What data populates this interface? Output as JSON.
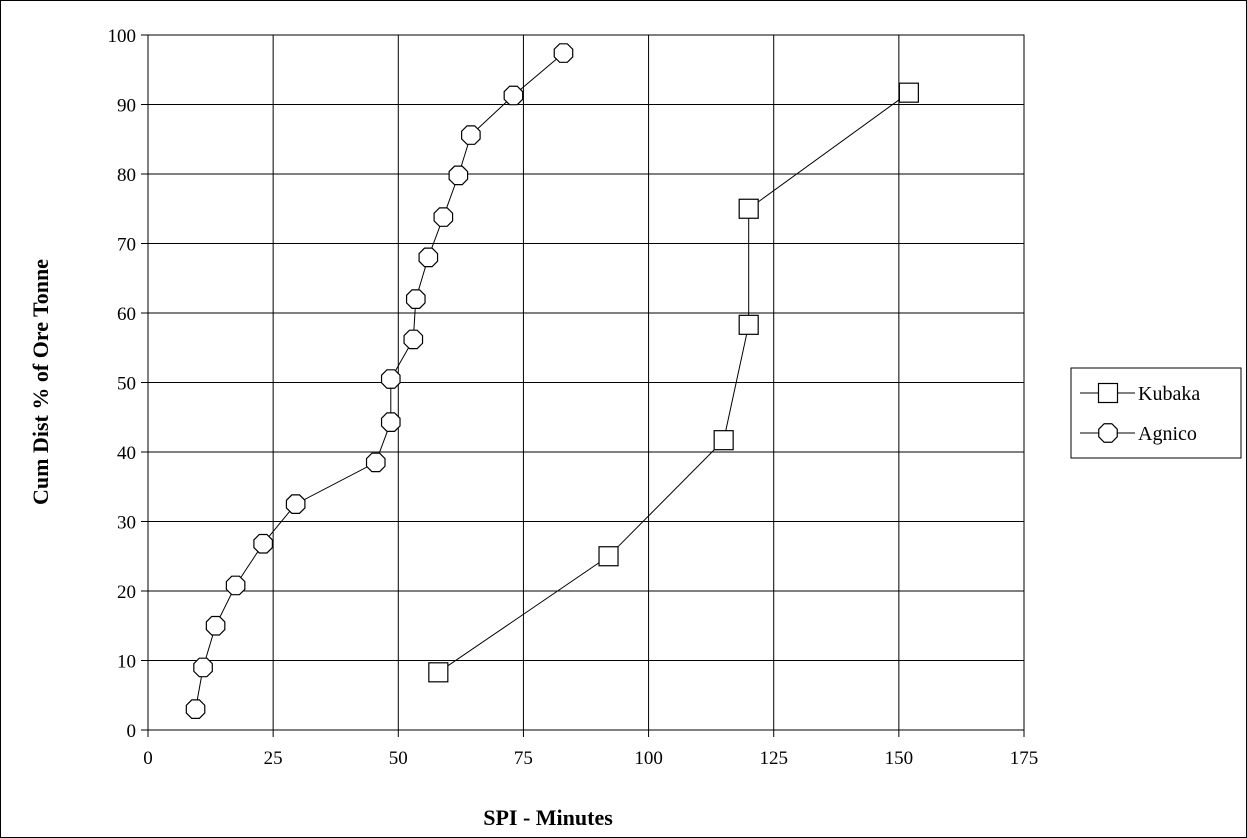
{
  "chart_data": {
    "type": "scatter",
    "title": "",
    "xlabel": "SPI - Minutes",
    "ylabel": "Cum Dist % of Ore Tonne",
    "xlim": [
      0,
      175
    ],
    "ylim": [
      0,
      100
    ],
    "xticks": [
      0,
      25,
      50,
      75,
      100,
      125,
      150,
      175
    ],
    "yticks": [
      0,
      10,
      20,
      30,
      40,
      50,
      60,
      70,
      80,
      90,
      100
    ],
    "grid": true,
    "legend_position": "right",
    "series": [
      {
        "name": "Kubaka",
        "marker": "square",
        "line": true,
        "x": [
          58,
          92,
          115,
          120,
          120,
          152
        ],
        "y": [
          8.3,
          25,
          41.7,
          58.3,
          75,
          91.7
        ]
      },
      {
        "name": "Agnico",
        "marker": "octagon",
        "line": true,
        "x": [
          9.5,
          11,
          13.5,
          17.5,
          23,
          29.5,
          45.5,
          48.5,
          48.5,
          53,
          53.5,
          56,
          59,
          62,
          64.5,
          73,
          83
        ],
        "y": [
          3,
          9,
          15,
          20.8,
          26.8,
          32.5,
          38.5,
          44.3,
          50.5,
          56.2,
          62,
          68,
          73.8,
          79.8,
          85.6,
          91.3,
          97.4
        ]
      }
    ]
  }
}
